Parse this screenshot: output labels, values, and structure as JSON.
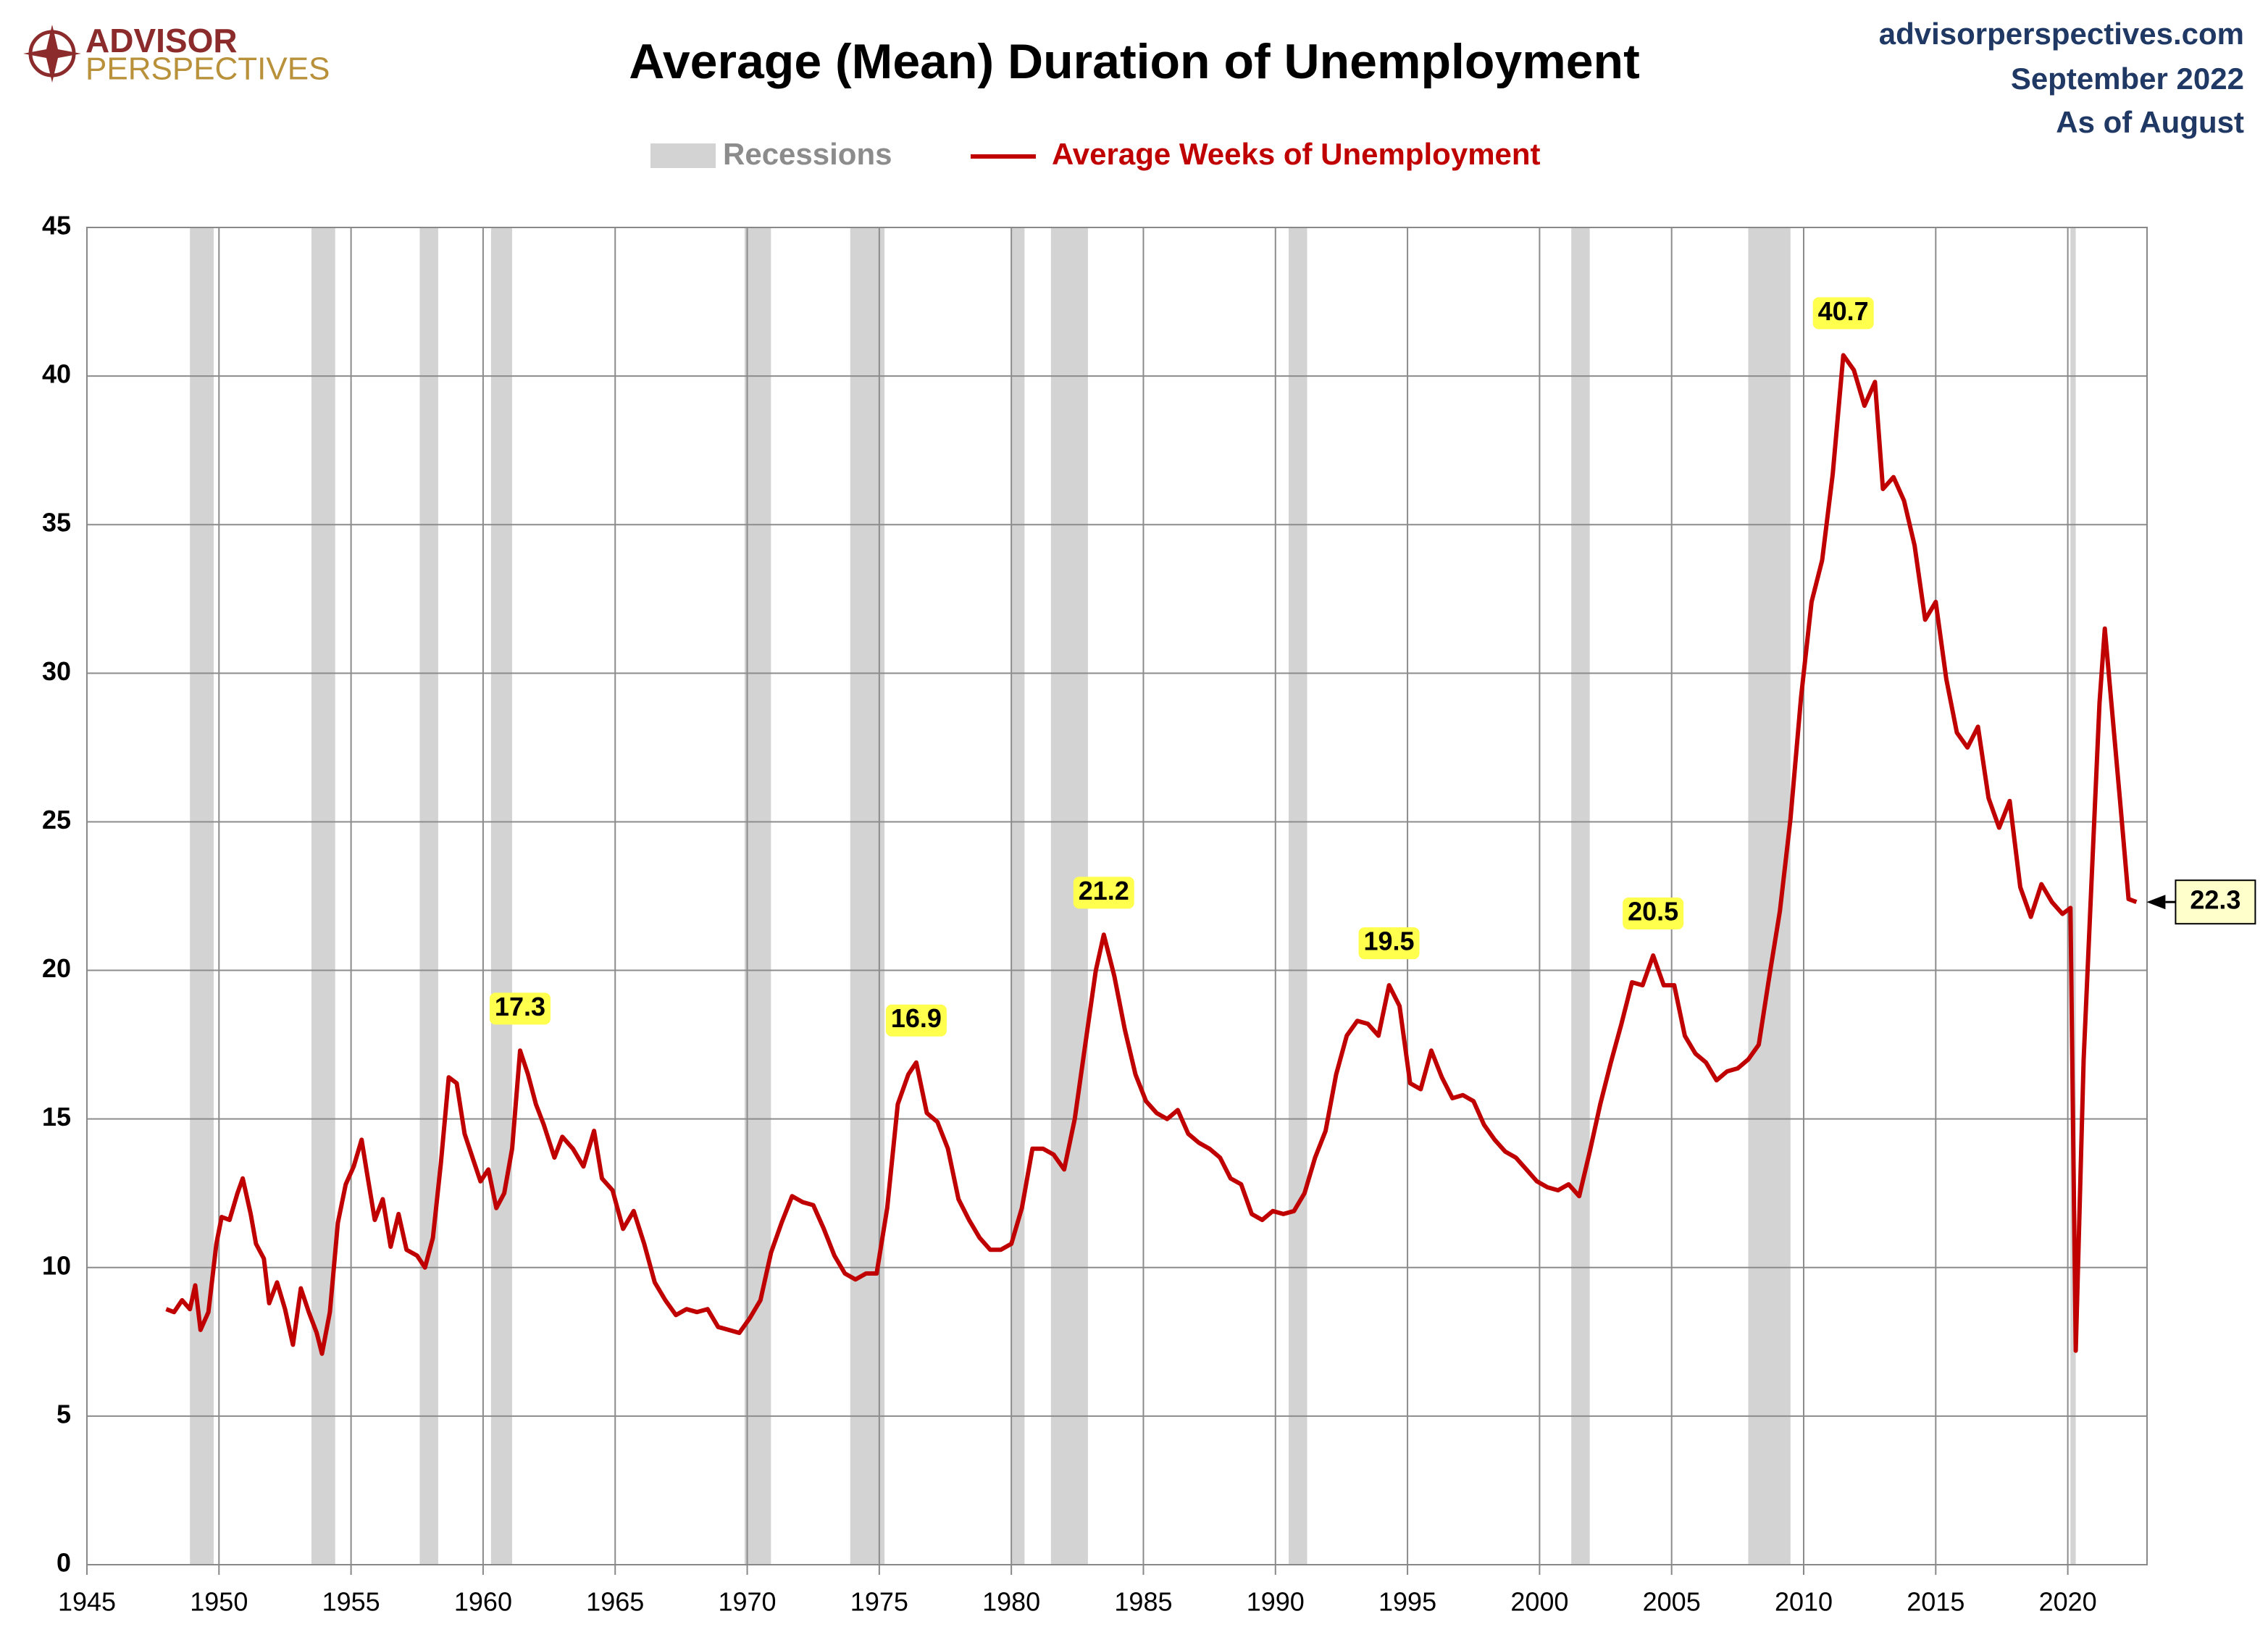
{
  "header": {
    "logo_line1": "ADVISOR",
    "logo_line2": "PERSPECTIVES",
    "site": "advisorperspectives.com",
    "date": "September 2022",
    "as_of": "As of August"
  },
  "chart_data": {
    "type": "line",
    "title": "Average (Mean) Duration of Unemployment",
    "recession_name": "Recessions",
    "recession_color": "#d3d3d3",
    "recessions": [
      [
        1948.9,
        1949.8
      ],
      [
        1953.5,
        1954.4
      ],
      [
        1957.6,
        1958.3
      ],
      [
        1960.3,
        1961.1
      ],
      [
        1969.9,
        1970.9
      ],
      [
        1973.9,
        1975.2
      ],
      [
        1980.0,
        1980.5
      ],
      [
        1981.5,
        1982.9
      ],
      [
        1990.5,
        1991.2
      ],
      [
        2001.2,
        2001.9
      ],
      [
        2007.9,
        2009.5
      ],
      [
        2020.1,
        2020.3
      ]
    ],
    "x": [
      1948.0,
      1948.3,
      1948.6,
      1948.9,
      1949.1,
      1949.3,
      1949.6,
      1949.9,
      1950.1,
      1950.4,
      1950.7,
      1950.9,
      1951.2,
      1951.4,
      1951.7,
      1951.9,
      1952.2,
      1952.5,
      1952.8,
      1953.1,
      1953.4,
      1953.7,
      1953.9,
      1954.2,
      1954.5,
      1954.8,
      1955.1,
      1955.4,
      1955.6,
      1955.9,
      1956.2,
      1956.5,
      1956.8,
      1957.1,
      1957.5,
      1957.8,
      1958.1,
      1958.4,
      1958.7,
      1959.0,
      1959.3,
      1959.6,
      1959.9,
      1960.2,
      1960.5,
      1960.8,
      1961.1,
      1961.4,
      1961.7,
      1962.0,
      1962.3,
      1962.7,
      1963.0,
      1963.4,
      1963.8,
      1964.2,
      1964.5,
      1964.9,
      1965.3,
      1965.7,
      1966.1,
      1966.5,
      1966.9,
      1967.3,
      1967.7,
      1968.1,
      1968.5,
      1968.9,
      1969.3,
      1969.7,
      1970.1,
      1970.5,
      1970.9,
      1971.3,
      1971.7,
      1972.1,
      1972.5,
      1972.9,
      1973.3,
      1973.7,
      1974.1,
      1974.5,
      1974.9,
      1975.3,
      1975.7,
      1976.1,
      1976.4,
      1976.8,
      1977.2,
      1977.6,
      1978.0,
      1978.4,
      1978.8,
      1979.2,
      1979.6,
      1980.0,
      1980.4,
      1980.8,
      1981.2,
      1981.6,
      1982.0,
      1982.4,
      1982.8,
      1983.2,
      1983.5,
      1983.9,
      1984.3,
      1984.7,
      1985.1,
      1985.5,
      1985.9,
      1986.3,
      1986.7,
      1987.1,
      1987.5,
      1987.9,
      1988.3,
      1988.7,
      1989.1,
      1989.5,
      1989.9,
      1990.3,
      1990.7,
      1991.1,
      1991.5,
      1991.9,
      1992.3,
      1992.7,
      1993.1,
      1993.5,
      1993.9,
      1994.3,
      1994.7,
      1995.1,
      1995.5,
      1995.9,
      1996.3,
      1996.7,
      1997.1,
      1997.5,
      1997.9,
      1998.3,
      1998.7,
      1999.1,
      1999.5,
      1999.9,
      2000.3,
      2000.7,
      2001.1,
      2001.5,
      2001.9,
      2002.3,
      2002.7,
      2003.1,
      2003.5,
      2003.9,
      2004.3,
      2004.7,
      2005.1,
      2005.5,
      2005.9,
      2006.3,
      2006.7,
      2007.1,
      2007.5,
      2007.9,
      2008.3,
      2008.7,
      2009.1,
      2009.5,
      2009.9,
      2010.3,
      2010.7,
      2011.1,
      2011.5,
      2011.9,
      2012.3,
      2012.7,
      2013.0,
      2013.4,
      2013.8,
      2014.2,
      2014.6,
      2015.0,
      2015.4,
      2015.8,
      2016.2,
      2016.6,
      2017.0,
      2017.4,
      2017.8,
      2018.2,
      2018.6,
      2019.0,
      2019.4,
      2019.8,
      2020.1,
      2020.3,
      2020.6,
      2020.9,
      2021.2,
      2021.4,
      2021.7,
      2022.0,
      2022.3,
      2022.6
    ],
    "series": [
      {
        "name": "Average Weeks of Unemployment",
        "color": "#c00000",
        "values": [
          8.6,
          8.5,
          8.9,
          8.6,
          9.4,
          7.9,
          8.5,
          10.8,
          11.7,
          11.6,
          12.5,
          13.0,
          11.8,
          10.8,
          10.3,
          8.8,
          9.5,
          8.6,
          7.4,
          9.3,
          8.5,
          7.8,
          7.1,
          8.5,
          11.5,
          12.8,
          13.4,
          14.3,
          13.2,
          11.6,
          12.3,
          10.7,
          11.8,
          10.6,
          10.4,
          10.0,
          11.0,
          13.5,
          16.4,
          16.2,
          14.5,
          13.7,
          12.9,
          13.3,
          12.0,
          12.5,
          14.0,
          17.3,
          16.5,
          15.5,
          14.8,
          13.7,
          14.4,
          14.0,
          13.4,
          14.6,
          13.0,
          12.6,
          11.3,
          11.9,
          10.8,
          9.5,
          8.9,
          8.4,
          8.6,
          8.5,
          8.6,
          8.0,
          7.9,
          7.8,
          8.3,
          8.9,
          10.5,
          11.5,
          12.4,
          12.2,
          12.1,
          11.3,
          10.4,
          9.8,
          9.6,
          9.8,
          9.8,
          12.0,
          15.5,
          16.5,
          16.9,
          15.2,
          14.9,
          14.0,
          12.3,
          11.6,
          11.0,
          10.6,
          10.6,
          10.8,
          12.0,
          14.0,
          14.0,
          13.8,
          13.3,
          15.0,
          17.5,
          20.0,
          21.2,
          19.8,
          18.0,
          16.5,
          15.6,
          15.2,
          15.0,
          15.3,
          14.5,
          14.2,
          14.0,
          13.7,
          13.0,
          12.8,
          11.8,
          11.6,
          11.9,
          11.8,
          11.9,
          12.5,
          13.7,
          14.6,
          16.5,
          17.8,
          18.3,
          18.2,
          17.8,
          19.5,
          18.8,
          16.2,
          16.0,
          17.3,
          16.4,
          15.7,
          15.8,
          15.6,
          14.8,
          14.3,
          13.9,
          13.7,
          13.3,
          12.9,
          12.7,
          12.6,
          12.8,
          12.4,
          13.9,
          15.5,
          16.9,
          18.2,
          19.6,
          19.5,
          20.5,
          19.5,
          19.5,
          17.8,
          17.2,
          16.9,
          16.3,
          16.6,
          16.7,
          17.0,
          17.5,
          19.8,
          22.0,
          25.1,
          29.2,
          32.4,
          33.8,
          36.7,
          40.7,
          40.2,
          39.0,
          39.8,
          36.2,
          36.6,
          35.8,
          34.3,
          31.8,
          32.4,
          29.8,
          28.0,
          27.5,
          28.2,
          25.8,
          24.8,
          25.7,
          22.8,
          21.8,
          22.9,
          22.3,
          21.9,
          22.1,
          7.2,
          17.0,
          23.0,
          29.0,
          31.5,
          28.5,
          25.5,
          22.4,
          22.3
        ]
      }
    ],
    "annotations": [
      {
        "x": 1961.4,
        "value": 17.3
      },
      {
        "x": 1976.4,
        "value": 16.9
      },
      {
        "x": 1983.5,
        "value": 21.2
      },
      {
        "x": 1994.3,
        "value": 19.5
      },
      {
        "x": 2004.3,
        "value": 20.5
      },
      {
        "x": 2011.5,
        "value": 40.7
      }
    ],
    "last_label": {
      "x": 2022.6,
      "value": 22.3
    },
    "xlim": [
      1945,
      2023
    ],
    "xticks": [
      1945,
      1950,
      1955,
      1960,
      1965,
      1970,
      1975,
      1980,
      1985,
      1990,
      1995,
      2000,
      2005,
      2010,
      2015,
      2020
    ],
    "ylim": [
      0,
      45
    ],
    "yticks": [
      0,
      5,
      10,
      15,
      20,
      25,
      30,
      35,
      40,
      45
    ],
    "grid": true
  }
}
